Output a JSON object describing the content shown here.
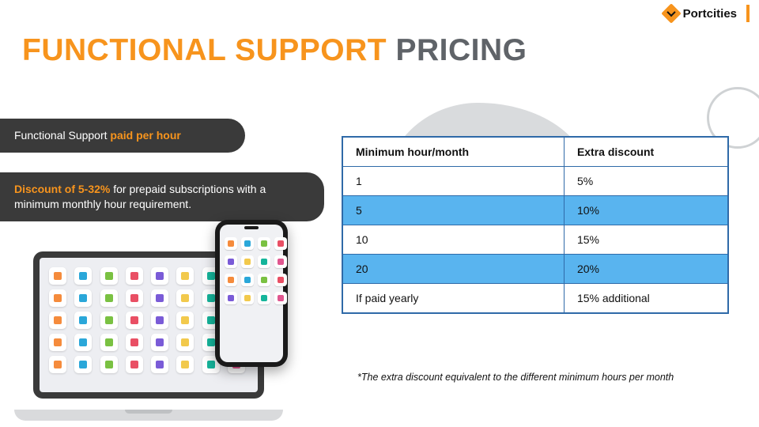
{
  "brand": {
    "name": "Portcities"
  },
  "headline": {
    "part1": "FUNCTIONAL SUPPORT",
    "part2": " PRICING"
  },
  "pill1": {
    "prefix": "Functional Support ",
    "accent": "paid per hour"
  },
  "pill2": {
    "accent": "Discount of 5-32%",
    "rest": " for prepaid subscriptions with a minimum monthly hour requirement."
  },
  "table": {
    "columns": [
      "Minimum hour/month",
      "Extra discount"
    ],
    "rows": [
      {
        "c0": "1",
        "c1": "5%",
        "highlight": false
      },
      {
        "c0": "5",
        "c1": "10%",
        "highlight": true
      },
      {
        "c0": "10",
        "c1": "15%",
        "highlight": false
      },
      {
        "c0": "20",
        "c1": "20%",
        "highlight": true
      },
      {
        "c0": "If paid yearly",
        "c1": "15% additional",
        "highlight": false
      }
    ],
    "border_color": "#2f6aa8",
    "highlight_color": "#59b4ef"
  },
  "footnote": "*The extra discount equivalent to the different minimum hours per month",
  "colors": {
    "orange": "#f7941d",
    "headline_grey": "#5f6368",
    "pill_bg": "#3a3a3a",
    "blob": "#d9dbdd",
    "ring": "#cfd2d4"
  },
  "devices": {
    "laptop_icons": 40,
    "phone_icons": 16,
    "icon_palette": [
      "#f58b3c",
      "#2aa7d9",
      "#7ac142",
      "#e94f64",
      "#7a5bd7",
      "#f2c94c",
      "#15b59b",
      "#e0568f"
    ]
  }
}
